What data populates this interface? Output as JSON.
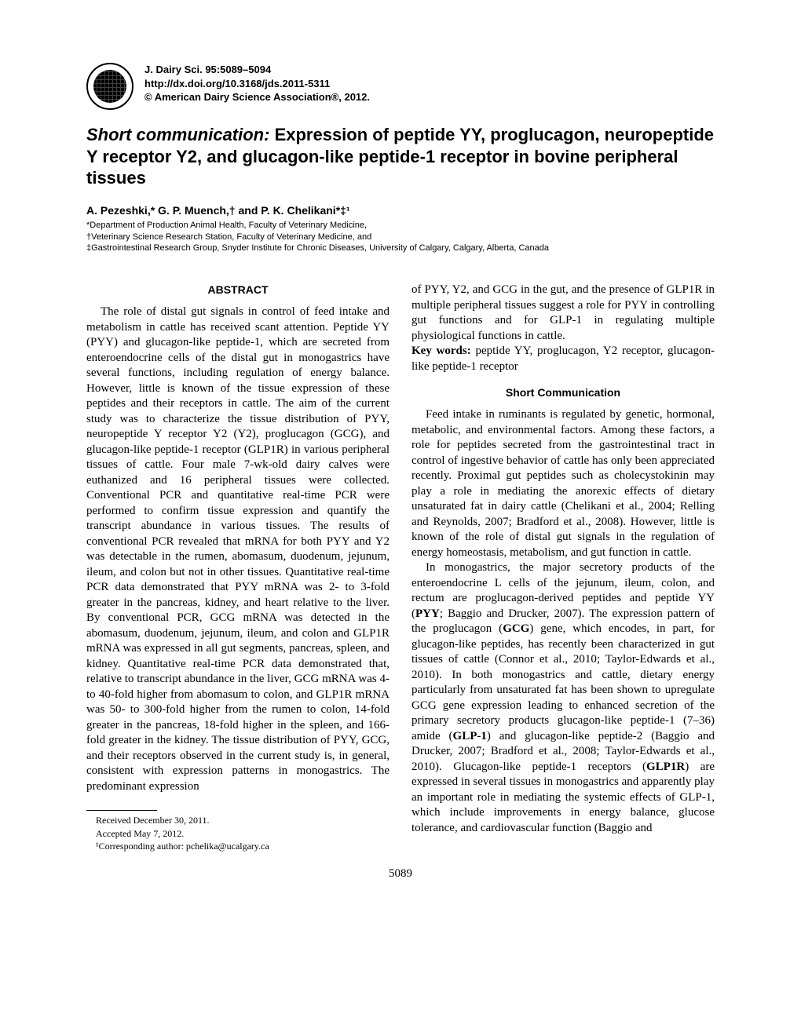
{
  "header": {
    "journal_line": "J. Dairy Sci. 95:5089–5094",
    "doi_line": "http://dx.doi.org/10.3168/jds.2011-5311",
    "copyright_line": "© American Dairy Science Association®, 2012."
  },
  "title": {
    "prefix": "Short communication:",
    "main": " Expression of peptide YY, proglucagon, neuropeptide Y receptor Y2, and glucagon-like peptide-1 receptor in bovine peripheral tissues"
  },
  "authors_line": "A. Pezeshki,* G. P. Muench,† and P. K. Chelikani*‡¹",
  "affiliations": {
    "a1": "*Department of Production Animal Health, Faculty of Veterinary Medicine,",
    "a2": "†Veterinary Science Research Station, Faculty of Veterinary Medicine, and",
    "a3": "‡Gastrointestinal Research Group, Snyder Institute for Chronic Diseases, University of Calgary, Calgary, Alberta, Canada"
  },
  "abstract": {
    "heading": "ABSTRACT",
    "text": "The role of distal gut signals in control of feed intake and metabolism in cattle has received scant attention. Peptide YY (PYY) and glucagon-like peptide-1, which are secreted from enteroendocrine cells of the distal gut in monogastrics have several functions, including regulation of energy balance. However, little is known of the tissue expression of these peptides and their receptors in cattle. The aim of the current study was to characterize the tissue distribution of PYY, neuropeptide Y receptor Y2 (Y2), proglucagon (GCG), and glucagon-like peptide-1 receptor (GLP1R) in various peripheral tissues of cattle. Four male 7-wk-old dairy calves were euthanized and 16 peripheral tissues were collected. Conventional PCR and quantitative real-time PCR were performed to confirm tissue expression and quantify the transcript abundance in various tissues. The results of conventional PCR revealed that mRNA for both PYY and Y2 was detectable in the rumen, abomasum, duodenum, jejunum, ileum, and colon but not in other tissues. Quantitative real-time PCR data demonstrated that PYY mRNA was 2- to 3-fold greater in the pancreas, kidney, and heart relative to the liver. By conventional PCR, GCG mRNA was detected in the abomasum, duodenum, jejunum, ileum, and colon and GLP1R mRNA was expressed in all gut segments, pancreas, spleen, and kidney. Quantitative real-time PCR data demonstrated that, relative to transcript abundance in the liver, GCG mRNA was 4- to 40-fold higher from abomasum to colon, and GLP1R mRNA was 50- to 300-fold higher from the rumen to colon, 14-fold greater in the pancreas, 18-fold higher in the spleen, and 166-fold greater in the kidney. The tissue distribution of PYY, GCG, and their receptors observed in the current study is, in general, consistent with expression patterns in monogastrics. The predominant expression"
  },
  "right_col": {
    "abstract_cont": "of PYY, Y2, and GCG in the gut, and the presence of GLP1R in multiple peripheral tissues suggest a role for PYY in controlling gut functions and for GLP-1 in regulating multiple physiological functions in cattle.",
    "keywords_label": "Key words:",
    "keywords_text": "  peptide YY, proglucagon, Y2 receptor, glucagon-like peptide-1 receptor",
    "sc_heading": "Short Communication",
    "p1": "Feed intake in ruminants is regulated by genetic, hormonal, metabolic, and environmental factors. Among these factors, a role for peptides secreted from the gastrointestinal tract in control of ingestive behavior of cattle has only been appreciated recently. Proximal gut peptides such as cholecystokinin may play a role in mediating the anorexic effects of dietary unsaturated fat in dairy cattle (Chelikani et al., 2004; Relling and Reynolds, 2007; Bradford et al., 2008). However, little is known of the role of distal gut signals in the regulation of energy homeostasis, metabolism, and gut function in cattle.",
    "p2_a": "In monogastrics, the major secretory products of the enteroendocrine L cells of the jejunum, ileum, colon, and rectum are proglucagon-derived peptides and peptide YY (",
    "p2_pyy": "PYY",
    "p2_b": "; Baggio and Drucker, 2007). The expression pattern of the proglucagon (",
    "p2_gcg": "GCG",
    "p2_c": ") gene, which encodes, in part, for glucagon-like peptides, has recently been characterized in gut tissues of cattle (Connor et al., 2010; Taylor-Edwards et al., 2010). In both monogastrics and cattle, dietary energy particularly from unsaturated fat has been shown to upregulate GCG gene expression leading to enhanced secretion of the primary secretory products glucagon-like peptide-1 (7–36) amide (",
    "p2_glp1": "GLP-1",
    "p2_d": ") and glucagon-like peptide-2 (Baggio and Drucker, 2007; Bradford et al., 2008; Taylor-Edwards et al., 2010). Glucagon-like peptide-1 receptors (",
    "p2_glp1r": "GLP1R",
    "p2_e": ") are expressed in several tissues in monogastrics and apparently play an important role in mediating the systemic effects of GLP-1, which include improvements in energy balance, glucose tolerance, and cardiovascular function (Baggio and"
  },
  "footnotes": {
    "received": "Received December 30, 2011.",
    "accepted": "Accepted May 7, 2012.",
    "corresponding": "¹Corresponding author: pchelika@ucalgary.ca"
  },
  "page_number": "5089"
}
